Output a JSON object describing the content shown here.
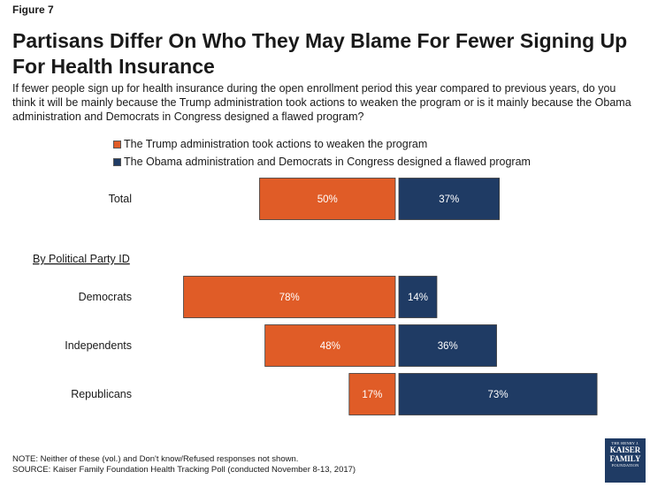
{
  "figure_label": "Figure 7",
  "title": "Partisans Differ On Who They May Blame For Fewer Signing Up For Health Insurance",
  "subtitle": "If fewer people sign up for health insurance during the open enrollment period this year compared to previous years, do you think it will be mainly because the Trump administration took actions to weaken the program or is it mainly because the Obama administration and Democrats in Congress designed a flawed program?",
  "colors": {
    "trump": "#e05c27",
    "obama": "#1f3b64",
    "bar_text": "#ffffff"
  },
  "chart_data": {
    "type": "bar",
    "orientation": "horizontal-diverging",
    "categories": [
      "Total",
      "Democrats",
      "Independents",
      "Republicans"
    ],
    "group_label": "By Political Party ID",
    "series": [
      {
        "name": "The Trump administration took actions to weaken the program",
        "values": [
          50,
          78,
          48,
          17
        ],
        "labels": [
          "50%",
          "78%",
          "48%",
          "17%"
        ]
      },
      {
        "name": "The Obama administration and Democrats in Congress designed a flawed program",
        "values": [
          37,
          14,
          36,
          73
        ],
        "labels": [
          "37%",
          "14%",
          "36%",
          "73%"
        ]
      }
    ],
    "legend_position": "top"
  },
  "note": "NOTE: Neither of these (vol.) and Don't know/Refused responses not shown.",
  "source": "SOURCE: Kaiser Family Foundation Health Tracking Poll (conducted November 8-13, 2017)",
  "logo": {
    "line1": "THE HENRY J.",
    "line2": "KAISER",
    "line3": "FAMILY",
    "line4": "FOUNDATION"
  }
}
